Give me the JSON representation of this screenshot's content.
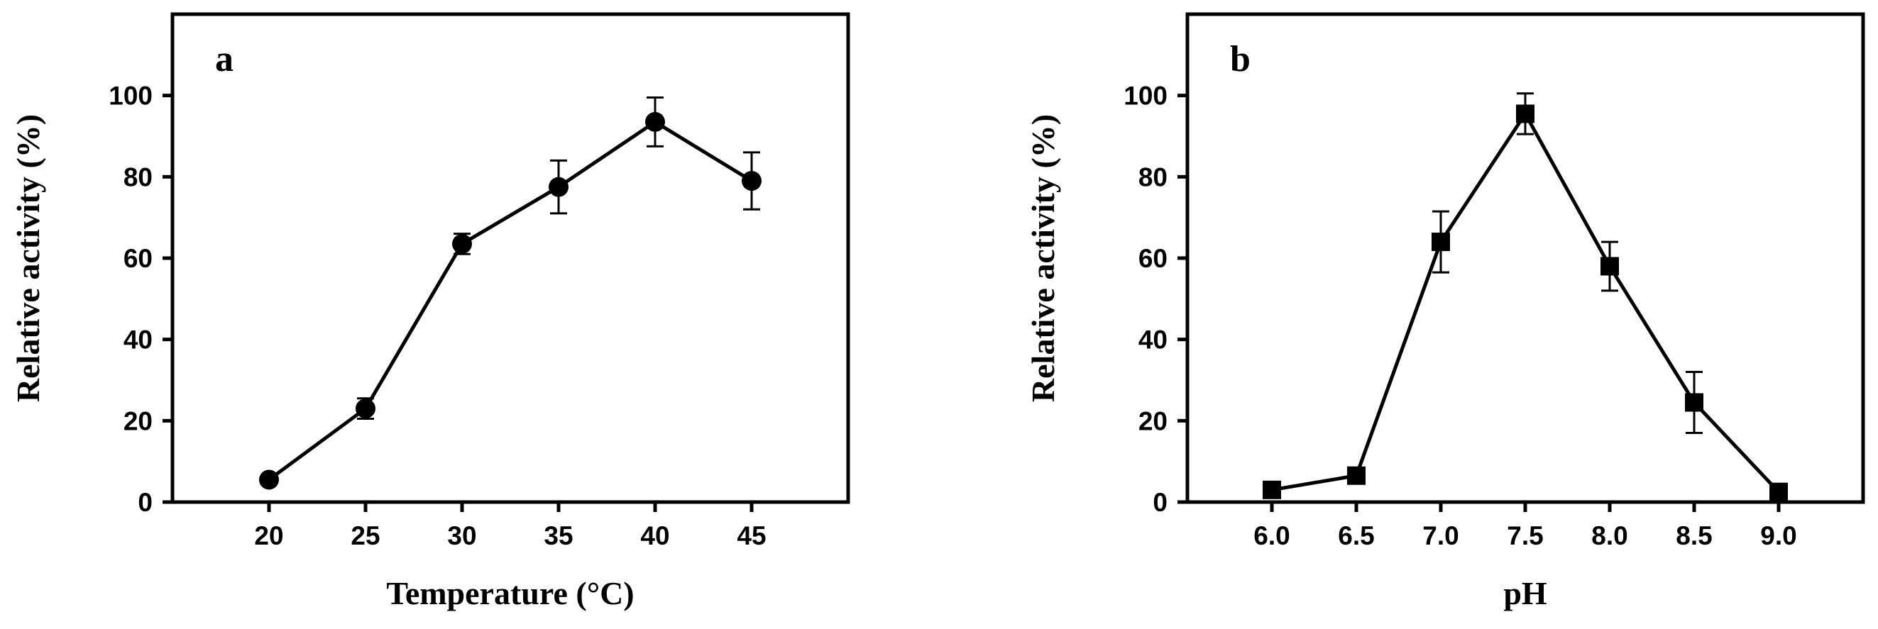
{
  "chart_data": [
    {
      "type": "line",
      "panel_label": "a",
      "xlabel": "Temperature (°C)",
      "ylabel": "Relative activity (%)",
      "xlim": [
        15,
        50
      ],
      "ylim": [
        0,
        120
      ],
      "x_ticks": [
        20,
        25,
        30,
        35,
        40,
        45
      ],
      "x_tick_labels": [
        "20",
        "25",
        "30",
        "35",
        "40",
        "45"
      ],
      "y_ticks": [
        0,
        20,
        40,
        60,
        80,
        100
      ],
      "y_tick_labels": [
        "0",
        "20",
        "40",
        "60",
        "80",
        "100"
      ],
      "marker": "circle",
      "grid": false,
      "series": [
        {
          "x": [
            20,
            25,
            30,
            35,
            40,
            45
          ],
          "values": [
            5.5,
            23,
            63.5,
            77.5,
            93.5,
            79
          ],
          "errors": [
            0.5,
            2.5,
            2.5,
            6.5,
            6,
            7
          ]
        }
      ]
    },
    {
      "type": "line",
      "panel_label": "b",
      "xlabel": "pH",
      "ylabel": "Relative activity (%)",
      "xlim": [
        5.5,
        9.5
      ],
      "ylim": [
        0,
        120
      ],
      "x_ticks": [
        6.0,
        6.5,
        7.0,
        7.5,
        8.0,
        8.5,
        9.0
      ],
      "x_tick_labels": [
        "6.0",
        "6.5",
        "7.0",
        "7.5",
        "8.0",
        "8.5",
        "9.0"
      ],
      "y_ticks": [
        0,
        20,
        40,
        60,
        80,
        100
      ],
      "y_tick_labels": [
        "0",
        "20",
        "40",
        "60",
        "80",
        "100"
      ],
      "marker": "square",
      "grid": false,
      "series": [
        {
          "x": [
            6.0,
            6.5,
            7.0,
            7.5,
            8.0,
            8.5,
            9.0
          ],
          "values": [
            3,
            6.5,
            64,
            95.5,
            58,
            24.5,
            2.5
          ],
          "errors": [
            0.5,
            0.8,
            7.5,
            5,
            6,
            7.5,
            0.5
          ]
        }
      ]
    }
  ]
}
